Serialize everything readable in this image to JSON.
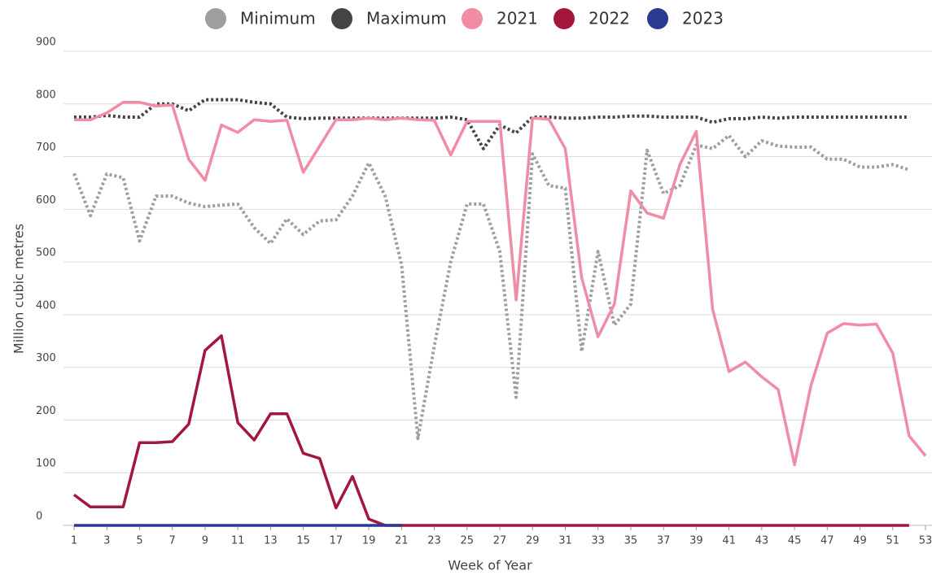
{
  "chart_data": {
    "type": "line",
    "xlabel": "Week of Year",
    "ylabel": "Million cubic metres",
    "x": [
      1,
      2,
      3,
      4,
      5,
      6,
      7,
      8,
      9,
      10,
      11,
      12,
      13,
      14,
      15,
      16,
      17,
      18,
      19,
      20,
      21,
      22,
      23,
      24,
      25,
      26,
      27,
      28,
      29,
      30,
      31,
      32,
      33,
      34,
      35,
      36,
      37,
      38,
      39,
      40,
      41,
      42,
      43,
      44,
      45,
      46,
      47,
      48,
      49,
      50,
      51,
      52,
      53
    ],
    "xlim": [
      1,
      53
    ],
    "xticks": [
      1,
      3,
      5,
      7,
      9,
      11,
      13,
      15,
      17,
      19,
      21,
      23,
      25,
      27,
      29,
      31,
      33,
      35,
      37,
      39,
      41,
      43,
      45,
      47,
      49,
      51,
      53
    ],
    "ylim": [
      0,
      900
    ],
    "yticks": [
      0,
      100,
      200,
      300,
      400,
      500,
      600,
      700,
      800,
      900
    ],
    "grid": true,
    "legend": "top",
    "series": [
      {
        "name": "Minimum",
        "color": "#9e9e9e",
        "style": "dotted",
        "values": [
          668,
          588,
          667,
          660,
          540,
          625,
          625,
          612,
          605,
          608,
          610,
          565,
          535,
          582,
          552,
          578,
          580,
          625,
          688,
          625,
          495,
          165,
          340,
          500,
          610,
          610,
          520,
          243,
          705,
          645,
          640,
          330,
          520,
          380,
          420,
          712,
          630,
          645,
          722,
          715,
          740,
          700,
          730,
          720,
          718,
          718,
          695,
          695,
          680,
          680,
          685,
          675,
          null
        ]
      },
      {
        "name": "Maximum",
        "color": "#444444",
        "style": "dotted",
        "values": [
          775,
          775,
          778,
          775,
          775,
          800,
          800,
          787,
          808,
          808,
          808,
          803,
          800,
          775,
          772,
          773,
          773,
          773,
          773,
          773,
          773,
          773,
          773,
          775,
          770,
          715,
          760,
          745,
          775,
          775,
          773,
          773,
          775,
          775,
          777,
          777,
          775,
          775,
          775,
          765,
          772,
          772,
          775,
          773,
          775,
          775,
          775,
          775,
          775,
          775,
          775,
          775,
          null
        ]
      },
      {
        "name": "2021",
        "color": "#f08ca3",
        "style": "solid",
        "values": [
          770,
          770,
          783,
          803,
          803,
          796,
          798,
          695,
          655,
          760,
          746,
          770,
          767,
          769,
          670,
          720,
          770,
          770,
          773,
          770,
          773,
          770,
          769,
          703,
          767,
          767,
          767,
          428,
          773,
          771,
          715,
          470,
          358,
          420,
          635,
          593,
          583,
          685,
          748,
          410,
          292,
          310,
          282,
          258,
          115,
          265,
          365,
          383,
          380,
          382,
          327,
          170,
          132
        ]
      },
      {
        "name": "2022",
        "color": "#a3173c",
        "style": "solid",
        "values": [
          58,
          35,
          35,
          35,
          157,
          157,
          159,
          192,
          332,
          360,
          195,
          162,
          212,
          212,
          137,
          127,
          33,
          93,
          12,
          0,
          0,
          0,
          0,
          0,
          0,
          0,
          0,
          0,
          0,
          0,
          0,
          0,
          0,
          0,
          0,
          0,
          0,
          0,
          0,
          0,
          0,
          0,
          0,
          0,
          0,
          0,
          0,
          0,
          0,
          0,
          0,
          0,
          null
        ]
      },
      {
        "name": "2023",
        "color": "#2b3990",
        "style": "solid",
        "values": [
          0,
          0,
          0,
          0,
          0,
          0,
          0,
          0,
          0,
          0,
          0,
          0,
          0,
          0,
          0,
          0,
          0,
          0,
          0,
          0,
          0,
          null,
          null,
          null,
          null,
          null,
          null,
          null,
          null,
          null,
          null,
          null,
          null,
          null,
          null,
          null,
          null,
          null,
          null,
          null,
          null,
          null,
          null,
          null,
          null,
          null,
          null,
          null,
          null,
          null,
          null,
          null,
          null
        ]
      }
    ]
  }
}
